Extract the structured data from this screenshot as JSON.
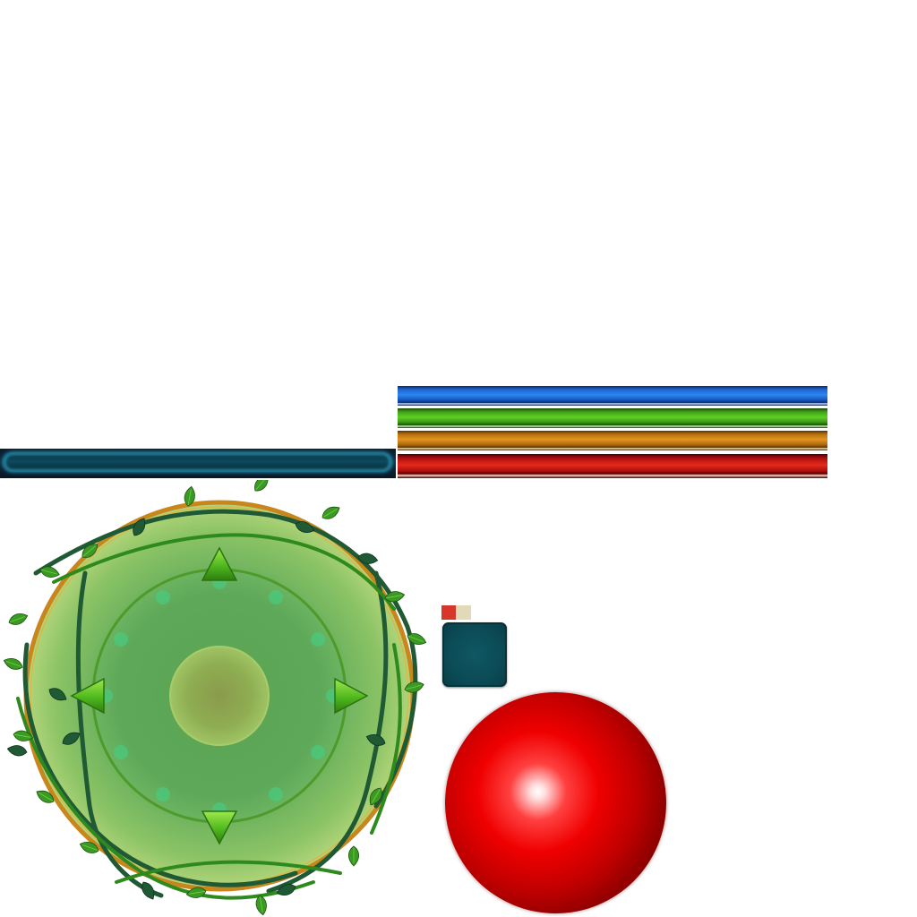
{
  "hud": {
    "energy_bar": {
      "name": "energy-bar",
      "fill": 0
    },
    "resource_bars": [
      {
        "name": "mana-bar",
        "color": "#2b86f0",
        "fill": 1.0
      },
      {
        "name": "stamina-bar",
        "color": "#5fcf24",
        "fill": 1.0
      },
      {
        "name": "exp-bar",
        "color": "#e0961e",
        "fill": 1.0
      },
      {
        "name": "health-bar",
        "color": "#e42a1a",
        "fill": 1.0
      }
    ]
  },
  "joystick": {
    "directions": [
      "up",
      "down",
      "left",
      "right"
    ],
    "colors": {
      "rim": "#c8861c",
      "pad": "#5ea85a",
      "inner_ring": "#4e9a2a",
      "arrow": "#4fb81e",
      "vine": "#1f5a34",
      "leaf": "#3a9a24"
    }
  },
  "swatches": [
    {
      "name": "red-swatch",
      "color": "#d7372b"
    },
    {
      "name": "cream-swatch",
      "color": "#e2d9b8"
    }
  ],
  "slot_tile": {
    "name": "item-slot",
    "color": "#0b4b56"
  },
  "orb": {
    "name": "red-orb-button",
    "color": "#f00000"
  }
}
